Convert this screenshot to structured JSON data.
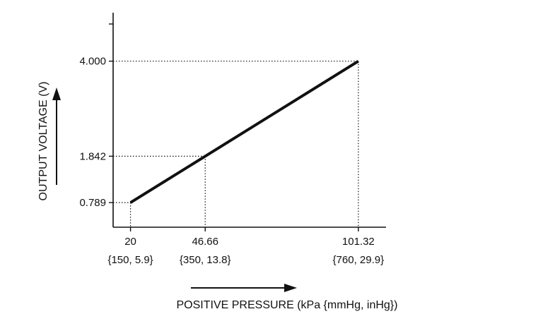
{
  "chart_data": {
    "type": "line",
    "title": "",
    "xlabel": "POSITIVE PRESSURE (kPa {mmHg, inHg})",
    "ylabel": "OUTPUT VOLTAGE (V)",
    "x": [
      20,
      46.66,
      101.32
    ],
    "y": [
      0.789,
      1.842,
      4.0
    ],
    "x_tick_labels": [
      "20",
      "46.66",
      "101.32"
    ],
    "x_tick_sublabels": [
      "{150, 5.9}",
      "{350, 13.8}",
      "{760, 29.9}"
    ],
    "y_tick_labels": [
      "0.789",
      "1.842",
      "4.000"
    ],
    "xlim": [
      13.8,
      111.2
    ],
    "ylim": [
      0.23,
      5.1
    ],
    "grid": false,
    "reference_lines": "dotted",
    "colors": {
      "line": "#111111",
      "axis": "#111111"
    }
  }
}
